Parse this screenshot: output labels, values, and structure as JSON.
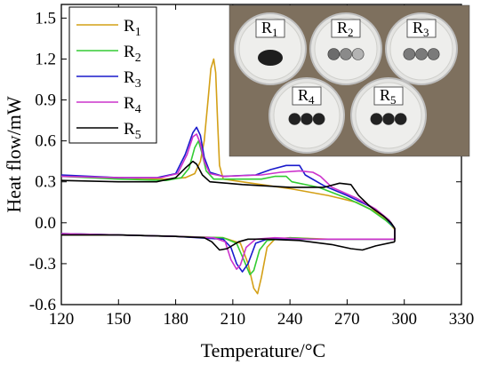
{
  "chart_data": {
    "type": "line",
    "xlabel": "Temperature/°C",
    "ylabel": "Heat flow/mW",
    "xlim": [
      120,
      330
    ],
    "ylim": [
      -0.6,
      1.6
    ],
    "x_ticks": [
      "120",
      "150",
      "180",
      "210",
      "240",
      "270",
      "300",
      "330"
    ],
    "y_ticks": [
      "-0.6",
      "-0.3",
      "0.0",
      "0.3",
      "0.6",
      "0.9",
      "1.2",
      "1.5"
    ],
    "legend_position": "top-left",
    "series": [
      {
        "name": "R1",
        "color": "#d4a017",
        "heating": [
          [
            120,
            0.34
          ],
          [
            150,
            0.33
          ],
          [
            175,
            0.32
          ],
          [
            185,
            0.33
          ],
          [
            190,
            0.36
          ],
          [
            193,
            0.45
          ],
          [
            195,
            0.6
          ],
          [
            197,
            0.9
          ],
          [
            198.5,
            1.13
          ],
          [
            200,
            1.2
          ],
          [
            201,
            1.1
          ],
          [
            202,
            0.75
          ],
          [
            203,
            0.42
          ],
          [
            205,
            0.32
          ],
          [
            220,
            0.29
          ],
          [
            240,
            0.25
          ],
          [
            260,
            0.2
          ],
          [
            275,
            0.15
          ],
          [
            285,
            0.08
          ],
          [
            292,
            0.0
          ],
          [
            295,
            -0.05
          ]
        ],
        "cooling": [
          [
            295,
            -0.12
          ],
          [
            260,
            -0.12
          ],
          [
            240,
            -0.11
          ],
          [
            232,
            -0.12
          ],
          [
            228,
            -0.18
          ],
          [
            225,
            -0.4
          ],
          [
            223,
            -0.52
          ],
          [
            221,
            -0.48
          ],
          [
            218,
            -0.3
          ],
          [
            214,
            -0.15
          ],
          [
            205,
            -0.11
          ],
          [
            180,
            -0.1
          ],
          [
            150,
            -0.09
          ],
          [
            120,
            -0.09
          ]
        ]
      },
      {
        "name": "R2",
        "color": "#33cc33",
        "heating": [
          [
            120,
            0.34
          ],
          [
            150,
            0.32
          ],
          [
            175,
            0.31
          ],
          [
            183,
            0.33
          ],
          [
            187,
            0.4
          ],
          [
            190,
            0.55
          ],
          [
            192,
            0.6
          ],
          [
            194,
            0.5
          ],
          [
            196,
            0.38
          ],
          [
            200,
            0.32
          ],
          [
            225,
            0.32
          ],
          [
            232,
            0.34
          ],
          [
            238,
            0.34
          ],
          [
            241,
            0.3
          ],
          [
            255,
            0.26
          ],
          [
            270,
            0.18
          ],
          [
            282,
            0.1
          ],
          [
            290,
            0.02
          ],
          [
            295,
            -0.04
          ]
        ],
        "cooling": [
          [
            295,
            -0.12
          ],
          [
            270,
            -0.12
          ],
          [
            255,
            -0.12
          ],
          [
            240,
            -0.11
          ],
          [
            228,
            -0.13
          ],
          [
            224,
            -0.2
          ],
          [
            221,
            -0.35
          ],
          [
            219,
            -0.38
          ],
          [
            216,
            -0.28
          ],
          [
            212,
            -0.15
          ],
          [
            205,
            -0.11
          ],
          [
            180,
            -0.1
          ],
          [
            150,
            -0.09
          ],
          [
            120,
            -0.08
          ]
        ]
      },
      {
        "name": "R3",
        "color": "#1a1acc",
        "heating": [
          [
            120,
            0.35
          ],
          [
            150,
            0.33
          ],
          [
            170,
            0.33
          ],
          [
            180,
            0.36
          ],
          [
            185,
            0.5
          ],
          [
            189,
            0.66
          ],
          [
            191,
            0.7
          ],
          [
            193,
            0.64
          ],
          [
            195,
            0.48
          ],
          [
            198,
            0.37
          ],
          [
            205,
            0.34
          ],
          [
            222,
            0.35
          ],
          [
            230,
            0.39
          ],
          [
            238,
            0.42
          ],
          [
            245,
            0.42
          ],
          [
            248,
            0.35
          ],
          [
            258,
            0.27
          ],
          [
            270,
            0.2
          ],
          [
            282,
            0.12
          ],
          [
            290,
            0.04
          ],
          [
            295,
            -0.04
          ]
        ],
        "cooling": [
          [
            295,
            -0.12
          ],
          [
            270,
            -0.12
          ],
          [
            250,
            -0.12
          ],
          [
            238,
            -0.12
          ],
          [
            228,
            -0.12
          ],
          [
            222,
            -0.15
          ],
          [
            218,
            -0.3
          ],
          [
            215,
            -0.36
          ],
          [
            212,
            -0.3
          ],
          [
            209,
            -0.18
          ],
          [
            205,
            -0.12
          ],
          [
            180,
            -0.1
          ],
          [
            150,
            -0.09
          ],
          [
            120,
            -0.08
          ]
        ]
      },
      {
        "name": "R4",
        "color": "#cc33cc",
        "heating": [
          [
            120,
            0.34
          ],
          [
            150,
            0.33
          ],
          [
            172,
            0.33
          ],
          [
            181,
            0.36
          ],
          [
            186,
            0.5
          ],
          [
            189,
            0.63
          ],
          [
            191,
            0.65
          ],
          [
            193,
            0.58
          ],
          [
            195,
            0.45
          ],
          [
            198,
            0.36
          ],
          [
            205,
            0.34
          ],
          [
            225,
            0.35
          ],
          [
            235,
            0.37
          ],
          [
            245,
            0.38
          ],
          [
            252,
            0.37
          ],
          [
            256,
            0.34
          ],
          [
            262,
            0.26
          ],
          [
            275,
            0.18
          ],
          [
            285,
            0.1
          ],
          [
            292,
            0.02
          ],
          [
            295,
            -0.04
          ]
        ],
        "cooling": [
          [
            295,
            -0.12
          ],
          [
            275,
            -0.12
          ],
          [
            262,
            -0.12
          ],
          [
            250,
            -0.12
          ],
          [
            232,
            -0.11
          ],
          [
            222,
            -0.12
          ],
          [
            217,
            -0.18
          ],
          [
            214,
            -0.31
          ],
          [
            212,
            -0.34
          ],
          [
            209,
            -0.27
          ],
          [
            206,
            -0.14
          ],
          [
            200,
            -0.11
          ],
          [
            180,
            -0.1
          ],
          [
            150,
            -0.09
          ],
          [
            120,
            -0.08
          ]
        ]
      },
      {
        "name": "R5",
        "color": "#000000",
        "heating": [
          [
            120,
            0.31
          ],
          [
            150,
            0.3
          ],
          [
            170,
            0.3
          ],
          [
            180,
            0.33
          ],
          [
            185,
            0.4
          ],
          [
            189,
            0.45
          ],
          [
            191,
            0.43
          ],
          [
            194,
            0.35
          ],
          [
            198,
            0.3
          ],
          [
            215,
            0.28
          ],
          [
            240,
            0.26
          ],
          [
            258,
            0.26
          ],
          [
            266,
            0.29
          ],
          [
            272,
            0.28
          ],
          [
            276,
            0.2
          ],
          [
            282,
            0.12
          ],
          [
            289,
            0.05
          ],
          [
            293,
            0.0
          ],
          [
            295,
            -0.04
          ]
        ],
        "cooling": [
          [
            295,
            -0.14
          ],
          [
            285,
            -0.17
          ],
          [
            278,
            -0.2
          ],
          [
            272,
            -0.19
          ],
          [
            262,
            -0.16
          ],
          [
            245,
            -0.13
          ],
          [
            228,
            -0.12
          ],
          [
            218,
            -0.12
          ],
          [
            213,
            -0.14
          ],
          [
            207,
            -0.19
          ],
          [
            203,
            -0.2
          ],
          [
            199,
            -0.14
          ],
          [
            195,
            -0.11
          ],
          [
            180,
            -0.1
          ],
          [
            150,
            -0.09
          ],
          [
            120,
            -0.09
          ]
        ]
      }
    ]
  },
  "inset": {
    "dish_labels": [
      "R1",
      "R2",
      "R3",
      "R4",
      "R5"
    ],
    "background": "#7e705e",
    "dish_color": "#e4e4e2"
  }
}
